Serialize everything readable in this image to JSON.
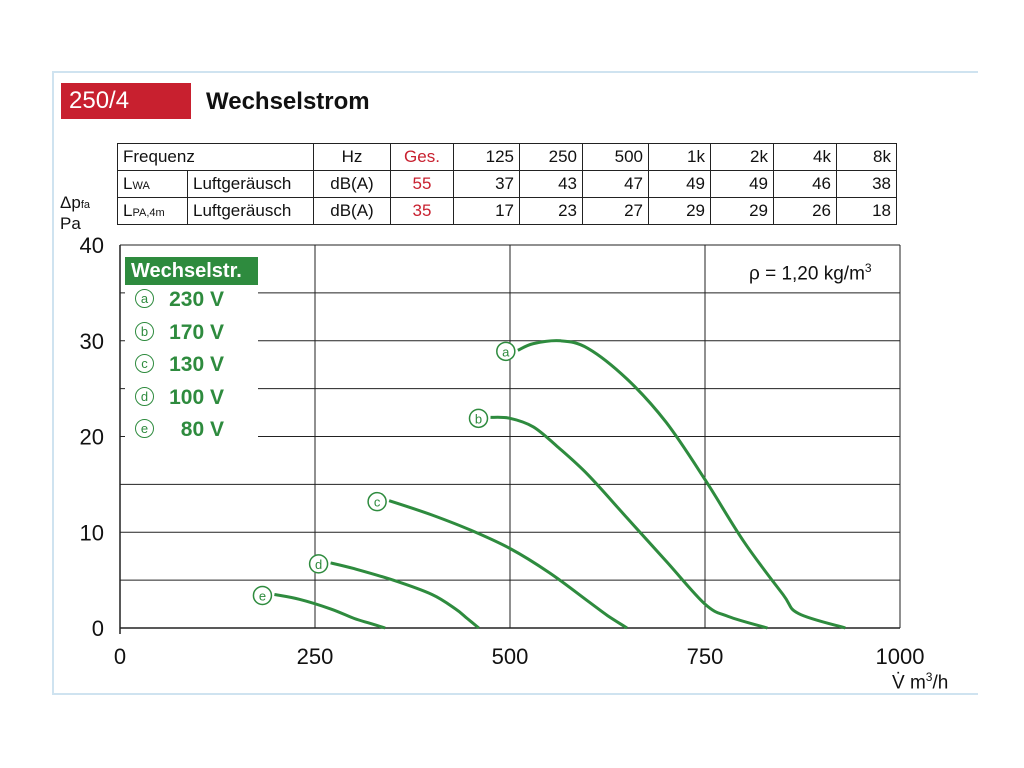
{
  "header": {
    "badge": "250/4",
    "title": "Wechselstrom"
  },
  "spec_table": {
    "head": [
      "Frequenz",
      "Hz",
      "Ges.",
      "125",
      "250",
      "500",
      "1k",
      "2k",
      "4k",
      "8k"
    ],
    "rows": [
      {
        "sym": "L",
        "sub": "WA",
        "label": "Luftgeräusch",
        "unit": "dB(A)",
        "total": "55",
        "values": [
          "37",
          "43",
          "47",
          "49",
          "49",
          "46",
          "38"
        ]
      },
      {
        "sym": "L",
        "sub": "PA,4m",
        "label": "Luftgeräusch",
        "unit": "dB(A)",
        "total": "35",
        "values": [
          "17",
          "23",
          "27",
          "29",
          "29",
          "26",
          "18"
        ]
      }
    ]
  },
  "colors": {
    "curve": "#2e8b3e",
    "accent_red": "#c8202f",
    "grid": "#222222",
    "frame": "#cfe3f0"
  },
  "chart_data": {
    "type": "line",
    "title": "",
    "ylabel_line1": "Δp",
    "ylabel_sub": "fa",
    "ylabel_line2": "Pa",
    "xlabel_prefix": "V̇ m",
    "xlabel_sup": "3",
    "xlabel_suffix": "/h",
    "xlim": [
      0,
      1000
    ],
    "ylim": [
      0,
      40
    ],
    "xticks": [
      0,
      250,
      500,
      750,
      1000
    ],
    "yticks": [
      0,
      10,
      20,
      30,
      40
    ],
    "grid": true,
    "annotation": {
      "text": "ρ = 1,20 kg/m",
      "sup": "3"
    },
    "legend_title": "Wechselstr.",
    "series": [
      {
        "name": "230 V",
        "marker": "a",
        "points": [
          [
            510,
            29
          ],
          [
            530,
            29.7
          ],
          [
            565,
            30
          ],
          [
            600,
            29.2
          ],
          [
            650,
            26
          ],
          [
            700,
            21.5
          ],
          [
            750,
            15.5
          ],
          [
            800,
            9
          ],
          [
            850,
            3.5
          ],
          [
            870,
            1.5
          ],
          [
            930,
            0
          ]
        ]
      },
      {
        "name": "170 V",
        "marker": "b",
        "points": [
          [
            475,
            22
          ],
          [
            500,
            21.9
          ],
          [
            530,
            21
          ],
          [
            560,
            19
          ],
          [
            600,
            16
          ],
          [
            650,
            11.5
          ],
          [
            700,
            7
          ],
          [
            750,
            2.5
          ],
          [
            780,
            1.2
          ],
          [
            830,
            0
          ]
        ]
      },
      {
        "name": "130 V",
        "marker": "c",
        "points": [
          [
            345,
            13.3
          ],
          [
            400,
            11.8
          ],
          [
            450,
            10.2
          ],
          [
            500,
            8.3
          ],
          [
            550,
            5.8
          ],
          [
            600,
            2.8
          ],
          [
            625,
            1.3
          ],
          [
            650,
            0
          ]
        ]
      },
      {
        "name": "100 V",
        "marker": "d",
        "points": [
          [
            270,
            6.8
          ],
          [
            300,
            6.2
          ],
          [
            350,
            5
          ],
          [
            400,
            3.5
          ],
          [
            430,
            2
          ],
          [
            445,
            1
          ],
          [
            460,
            0
          ]
        ]
      },
      {
        "name": "80 V",
        "marker": "e",
        "points": [
          [
            198,
            3.5
          ],
          [
            230,
            3
          ],
          [
            270,
            2
          ],
          [
            300,
            1
          ],
          [
            320,
            0.5
          ],
          [
            340,
            0
          ]
        ]
      }
    ]
  }
}
